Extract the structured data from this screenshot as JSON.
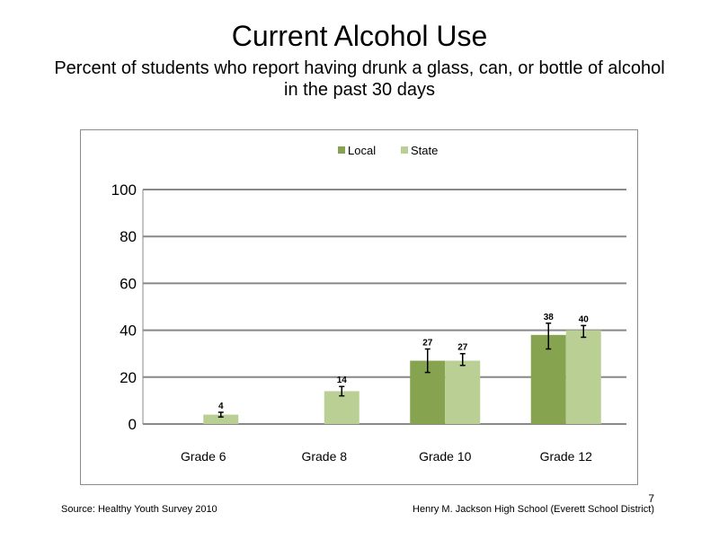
{
  "slide": {
    "title": "Current Alcohol Use",
    "subtitle": "Percent of students who report having drunk a glass, can, or bottle of alcohol in the past 30 days",
    "source": "Source: Healthy Youth Survey 2010",
    "school": "Henry M. Jackson High School (Everett School District)",
    "page_number": "7"
  },
  "chart_data": {
    "type": "bar",
    "title": "",
    "xlabel": "",
    "ylabel": "",
    "ylim": [
      0,
      100
    ],
    "yticks": [
      0,
      20,
      40,
      60,
      80,
      100
    ],
    "grid": true,
    "legend_position": "top",
    "categories": [
      "Grade 6",
      "Grade 8",
      "Grade 10",
      "Grade 12"
    ],
    "series": [
      {
        "name": "Local",
        "color": "#86a350",
        "values": [
          null,
          null,
          27,
          38
        ],
        "labels": [
          "",
          "",
          "27",
          "38"
        ],
        "error_low": [
          null,
          null,
          22,
          32
        ],
        "error_high": [
          null,
          null,
          32,
          43
        ]
      },
      {
        "name": "State",
        "color": "#b9cf93",
        "values": [
          4,
          14,
          27,
          40
        ],
        "labels": [
          "4",
          "14",
          "27",
          "40"
        ],
        "error_low": [
          3,
          12,
          25,
          37
        ],
        "error_high": [
          5,
          16,
          30,
          42
        ]
      }
    ]
  }
}
